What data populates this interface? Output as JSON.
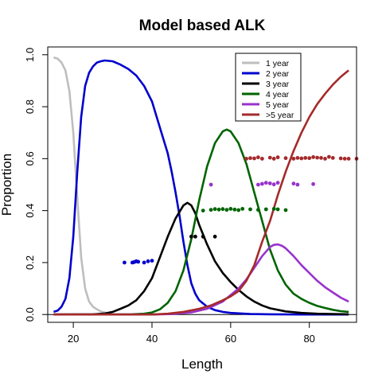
{
  "chart_data": {
    "type": "line",
    "title": "Model based ALK",
    "xlabel": "Length",
    "ylabel": "Proportion",
    "xlim": [
      13.5,
      92
    ],
    "ylim": [
      -0.03,
      1.03
    ],
    "xticks": [
      20,
      40,
      60,
      80
    ],
    "yticks": [
      0.0,
      0.2,
      0.4,
      0.6,
      0.8,
      1.0
    ],
    "xtick_labels": [
      "20",
      "40",
      "60",
      "80"
    ],
    "ytick_labels": [
      "0.0",
      "0.2",
      "0.4",
      "0.6",
      "0.8",
      "1.0"
    ],
    "grid": false,
    "legend_position": "top-right",
    "series": [
      {
        "name": "1 year",
        "color": "#bebebe",
        "x": [
          15,
          16,
          17,
          18,
          19,
          20,
          21,
          22,
          23,
          24,
          25,
          26,
          27,
          28,
          29,
          30
        ],
        "y": [
          0.99,
          0.985,
          0.97,
          0.94,
          0.86,
          0.7,
          0.45,
          0.22,
          0.1,
          0.05,
          0.03,
          0.02,
          0.012,
          0.008,
          0.004,
          0.002
        ]
      },
      {
        "name": "2 year",
        "color": "#0000cd",
        "x": [
          15,
          16,
          17,
          18,
          19,
          20,
          21,
          22,
          23,
          24,
          25,
          26,
          27,
          28,
          30,
          32,
          34,
          36,
          38,
          40,
          42,
          44,
          45,
          46,
          47,
          48,
          49,
          50,
          51,
          52,
          54,
          56,
          58,
          60,
          65,
          70,
          80,
          90
        ],
        "y": [
          0.01,
          0.015,
          0.03,
          0.06,
          0.14,
          0.3,
          0.55,
          0.76,
          0.88,
          0.93,
          0.955,
          0.97,
          0.975,
          0.978,
          0.975,
          0.962,
          0.945,
          0.92,
          0.88,
          0.82,
          0.72,
          0.62,
          0.55,
          0.47,
          0.38,
          0.28,
          0.19,
          0.12,
          0.08,
          0.055,
          0.03,
          0.017,
          0.01,
          0.006,
          0.002,
          0.001,
          0.0,
          0.0
        ]
      },
      {
        "name": "3 year",
        "color": "#000000",
        "x": [
          15,
          25,
          28,
          30,
          32,
          34,
          36,
          38,
          40,
          42,
          44,
          46,
          48,
          49,
          50,
          51,
          52,
          54,
          56,
          58,
          60,
          62,
          64,
          66,
          68,
          70,
          74,
          78,
          82,
          86,
          90
        ],
        "y": [
          0.0,
          0.001,
          0.004,
          0.01,
          0.022,
          0.035,
          0.055,
          0.09,
          0.14,
          0.22,
          0.3,
          0.37,
          0.42,
          0.43,
          0.42,
          0.39,
          0.345,
          0.27,
          0.205,
          0.16,
          0.125,
          0.095,
          0.07,
          0.05,
          0.035,
          0.024,
          0.012,
          0.006,
          0.003,
          0.002,
          0.001
        ]
      },
      {
        "name": "4 year",
        "color": "#006400",
        "x": [
          15,
          30,
          35,
          38,
          40,
          42,
          44,
          46,
          48,
          50,
          52,
          54,
          56,
          58,
          59,
          60,
          62,
          64,
          66,
          68,
          70,
          72,
          74,
          76,
          78,
          80,
          82,
          84,
          86,
          88,
          90
        ],
        "y": [
          0.0,
          0.0,
          0.001,
          0.003,
          0.008,
          0.02,
          0.045,
          0.09,
          0.17,
          0.29,
          0.44,
          0.57,
          0.66,
          0.705,
          0.712,
          0.705,
          0.66,
          0.58,
          0.47,
          0.36,
          0.25,
          0.17,
          0.115,
          0.08,
          0.06,
          0.045,
          0.033,
          0.025,
          0.018,
          0.013,
          0.01
        ]
      },
      {
        "name": "5 year",
        "color": "#9932cc",
        "x": [
          15,
          40,
          45,
          50,
          54,
          58,
          62,
          64,
          66,
          68,
          70,
          71,
          72,
          73,
          74,
          76,
          78,
          80,
          82,
          84,
          86,
          88,
          90
        ],
        "y": [
          0.0,
          0.0,
          0.002,
          0.008,
          0.022,
          0.05,
          0.1,
          0.135,
          0.18,
          0.225,
          0.26,
          0.268,
          0.27,
          0.265,
          0.255,
          0.225,
          0.19,
          0.16,
          0.13,
          0.105,
          0.085,
          0.065,
          0.05
        ]
      },
      {
        "name": ">5 year",
        "color": "#a52a2a",
        "x": [
          15,
          40,
          44,
          48,
          52,
          55,
          58,
          60,
          62,
          64,
          66,
          68,
          70,
          72,
          74,
          76,
          78,
          80,
          82,
          84,
          86,
          88,
          90
        ],
        "y": [
          0.0,
          0.0,
          0.003,
          0.01,
          0.022,
          0.035,
          0.055,
          0.07,
          0.09,
          0.13,
          0.19,
          0.28,
          0.36,
          0.46,
          0.55,
          0.63,
          0.7,
          0.76,
          0.81,
          0.85,
          0.885,
          0.915,
          0.94
        ]
      }
    ],
    "observed_points": [
      {
        "series": "2 year",
        "color": "#0000cd",
        "x": [
          33,
          35,
          35.5,
          36,
          36.5,
          38,
          39,
          40
        ],
        "y": [
          0.2,
          0.2,
          0.202,
          0.205,
          0.203,
          0.2,
          0.205,
          0.207
        ]
      },
      {
        "series": "3 year",
        "color": "#000000",
        "x": [
          50,
          51,
          53,
          56
        ],
        "y": [
          0.3,
          0.3,
          0.3,
          0.3
        ]
      },
      {
        "series": "4 year",
        "color": "#006400",
        "x": [
          53,
          55,
          56,
          57,
          58,
          59,
          60,
          61,
          62,
          63,
          65,
          67,
          69,
          71,
          72,
          74
        ],
        "y": [
          0.4,
          0.403,
          0.406,
          0.404,
          0.406,
          0.403,
          0.407,
          0.404,
          0.402,
          0.407,
          0.405,
          0.403,
          0.405,
          0.407,
          0.405,
          0.402
        ]
      },
      {
        "series": "5 year",
        "color": "#9932cc",
        "x": [
          55,
          67,
          68,
          69,
          70,
          71,
          72,
          76,
          77,
          81
        ],
        "y": [
          0.5,
          0.5,
          0.503,
          0.507,
          0.505,
          0.501,
          0.507,
          0.504,
          0.5,
          0.502
        ]
      },
      {
        "series": ">5 year",
        "color": "#a52a2a",
        "x": [
          64,
          65,
          66,
          67,
          68,
          70,
          71,
          72,
          74,
          76,
          77,
          78,
          79,
          80,
          81,
          82,
          83,
          84,
          85,
          86,
          88,
          89,
          90,
          92
        ],
        "y": [
          0.6,
          0.602,
          0.601,
          0.605,
          0.6,
          0.604,
          0.6,
          0.605,
          0.602,
          0.6,
          0.603,
          0.601,
          0.603,
          0.602,
          0.606,
          0.604,
          0.603,
          0.6,
          0.607,
          0.603,
          0.601,
          0.6,
          0.6,
          0.6
        ]
      }
    ]
  }
}
